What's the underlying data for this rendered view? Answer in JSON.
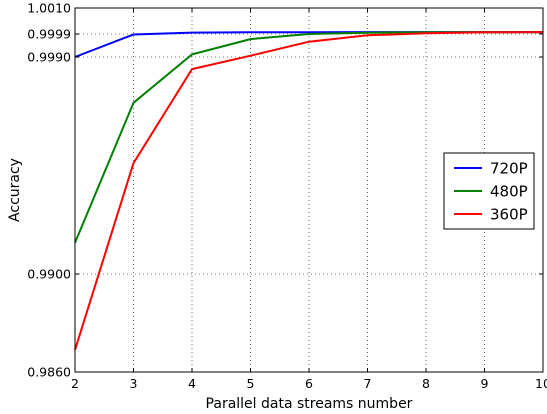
{
  "chart_data": {
    "type": "line",
    "xlabel": "Parallel data streams number",
    "ylabel": "Accuracy",
    "x": [
      2,
      3,
      4,
      5,
      6,
      7,
      8,
      9,
      10
    ],
    "xlim": [
      2,
      10
    ],
    "ylim": [
      0.986,
      1.001
    ],
    "x_scale": "linear",
    "y_scale": "nonlinear (axis broken-in-style with compressed ticks near 1.0)",
    "x_ticks": [
      "2",
      "3",
      "4",
      "5",
      "6",
      "7",
      "8",
      "9",
      "10"
    ],
    "y_ticks": [
      "0.9860",
      "0.9900",
      "0.9990",
      "0.9999",
      "1.0010"
    ],
    "grid": true,
    "legend_position": "right",
    "series": [
      {
        "name": "720P",
        "color": "#0000ff",
        "values": [
          0.999,
          0.99988,
          0.99996,
          0.99997,
          0.99997,
          0.99998,
          0.99998,
          0.99998,
          0.99998
        ]
      },
      {
        "name": "480P",
        "color": "#008000",
        "values": [
          0.9913,
          0.9971,
          0.9991,
          0.9997,
          0.9999,
          0.99995,
          0.99997,
          0.99998,
          0.99998
        ]
      },
      {
        "name": "360P",
        "color": "#ff0000",
        "values": [
          0.9869,
          0.9946,
          0.9985,
          0.99905,
          0.9996,
          0.99985,
          0.99993,
          0.99997,
          0.99998
        ]
      }
    ]
  }
}
